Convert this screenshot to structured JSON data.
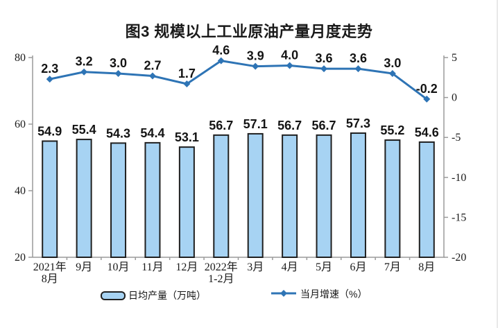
{
  "title": "图3 规模以上工业原油产量月度走势",
  "legend": {
    "bar_label": "日均产量（万吨）",
    "line_label": "当月增速（%）"
  },
  "colors": {
    "bar_fill": "#A7D3F3",
    "bar_border": "#1f1f1f",
    "line": "#2E74B5",
    "axis": "#9a9a9a",
    "text": "#141414"
  },
  "chart_data": {
    "type": "bar+line combo",
    "title": "图3 规模以上工业原油产量月度走势",
    "categories": [
      "2021年\n8月",
      "9月",
      "10月",
      "11月",
      "12月",
      "2022年\n1-2月",
      "3月",
      "4月",
      "5月",
      "6月",
      "7月",
      "8月"
    ],
    "series": [
      {
        "name": "日均产量（万吨）",
        "type": "bar",
        "axis": "left",
        "values": [
          54.9,
          55.4,
          54.3,
          54.4,
          53.1,
          56.7,
          57.1,
          56.7,
          56.7,
          57.3,
          55.2,
          54.6
        ]
      },
      {
        "name": "当月增速（%）",
        "type": "line",
        "axis": "right",
        "values": [
          2.3,
          3.2,
          3.0,
          2.7,
          1.7,
          4.6,
          3.9,
          4.0,
          3.6,
          3.6,
          3.0,
          -0.2
        ]
      }
    ],
    "left_axis": {
      "min": 20,
      "max": 80,
      "ticks": [
        80,
        60,
        40,
        20
      ]
    },
    "right_axis": {
      "min": -20,
      "max": 5,
      "ticks": [
        5,
        0,
        -5,
        -10,
        -15,
        -20
      ]
    },
    "grid": false,
    "legend_position": "bottom",
    "data_labels": true
  }
}
